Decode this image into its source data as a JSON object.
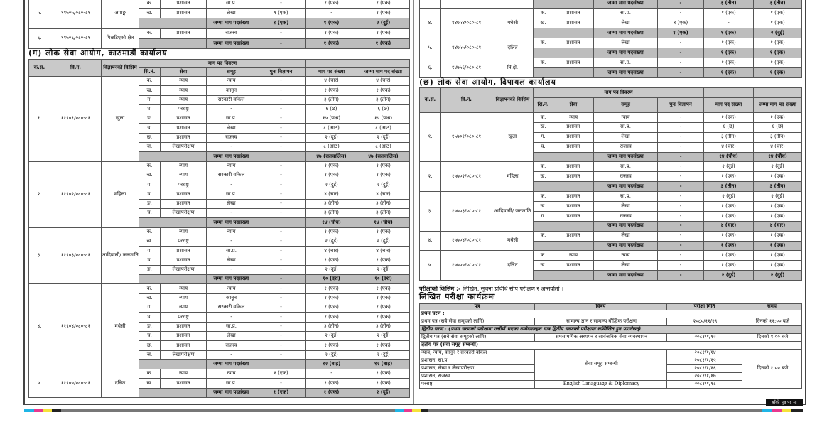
{
  "total_label": "जम्मा माग पदसंख्या",
  "headers": {
    "ks": "क.सं.",
    "vn": "वि.नं.",
    "type": "विज्ञापनको किसिम",
    "detail": "माग पद विवरण",
    "sn": "सि.नं.",
    "sewa": "सेवा",
    "samuh": "समूह",
    "puna": "पुनः विज्ञापन",
    "maag": "माग पद संख्या",
    "jamma": "जम्मा माग पद संख्या"
  },
  "left_top_groups": [
    {
      "ks": "५.",
      "vn": "११५०५/०८०-८१",
      "type": "अपाङ्ग",
      "rows": [
        [
          "क.",
          "प्रशासन",
          "सा.प्र.",
          "-",
          "१ (एक)",
          "१ (एक)"
        ],
        [
          "ख.",
          "प्रशासन",
          "लेखा",
          "१ (एक)",
          "-",
          "१ (एक)"
        ]
      ],
      "total": [
        "१ (एक)",
        "१ (एक)",
        "२ (दुई)"
      ]
    },
    {
      "ks": "६.",
      "vn": "११५०६/०८०-८१",
      "type": "पिछडिएको क्षेत्र",
      "rows": [
        [
          "क.",
          "प्रशासन",
          "राजस्व",
          "-",
          "१ (एक)",
          "१ (एक)"
        ]
      ],
      "total": [
        "-",
        "१ (एक)",
        "१ (एक)"
      ]
    }
  ],
  "section_g": {
    "title": "(ग) लोक सेवा आयोग, काठमाडौं कार्यालय",
    "groups": [
      {
        "ks": "१.",
        "vn": "११९०१/०८०-८१",
        "type": "खुला",
        "rows": [
          [
            "क.",
            "न्याय",
            "न्याय",
            "-",
            "४ (चार)",
            "४ (चार)"
          ],
          [
            "ख.",
            "न्याय",
            "कानून",
            "-",
            "१ (एक)",
            "१ (एक)"
          ],
          [
            "ग.",
            "न्याय",
            "सरकारी वकिल",
            "-",
            "३ (तीन)",
            "३ (तीन)"
          ],
          [
            "घ.",
            "परराष्ट्र",
            "-",
            "-",
            "६ (छ)",
            "६ (छ)"
          ],
          [
            "ङ.",
            "प्रशासन",
            "सा.प्र.",
            "-",
            "१५ (पन्ध्र)",
            "१५ (पन्ध्र)"
          ],
          [
            "च.",
            "प्रशासन",
            "लेखा",
            "-",
            "८ (आठ)",
            "८ (आठ)"
          ],
          [
            "छ.",
            "प्रशासन",
            "राजस्व",
            "-",
            "२ (दुई)",
            "२ (दुई)"
          ],
          [
            "ज.",
            "लेखापरीक्षण",
            "-",
            "-",
            "८ (आठ)",
            "८ (आठ)"
          ]
        ],
        "total": [
          "",
          "४७ (सतचालिस)",
          "४७ (सतचालिस)"
        ]
      },
      {
        "ks": "२.",
        "vn": "११९०२/०८०-८१",
        "type": "महिला",
        "rows": [
          [
            "क.",
            "न्याय",
            "न्याय",
            "-",
            "१ (एक)",
            "१ (एक)"
          ],
          [
            "ख.",
            "न्याय",
            "सरकारी वकिल",
            "-",
            "१ (एक)",
            "१ (एक)"
          ],
          [
            "ग.",
            "परराष्ट्र",
            "-",
            "-",
            "२ (दुई)",
            "२ (दुई)"
          ],
          [
            "घ.",
            "प्रशासन",
            "सा.प्र.",
            "-",
            "४ (चार)",
            "४ (चार)"
          ],
          [
            "ङ.",
            "प्रशासन",
            "लेखा",
            "-",
            "३ (तीन)",
            "३ (तीन)"
          ],
          [
            "च.",
            "लेखापरीक्षण",
            "-",
            "-",
            "३ (तीन)",
            "३ (तीन)"
          ]
        ],
        "total": [
          "",
          "१४ (चौध)",
          "१४ (चौध)"
        ]
      },
      {
        "ks": "३.",
        "vn": "११९०३/०८०-८१",
        "type": "आदिवासी/ जनजाति",
        "rows": [
          [
            "क.",
            "न्याय",
            "न्याय",
            "-",
            "१ (एक)",
            "१ (एक)"
          ],
          [
            "ख.",
            "परराष्ट्र",
            "-",
            "-",
            "२ (दुई)",
            "२ (दुई)"
          ],
          [
            "ग.",
            "प्रशासन",
            "सा.प्र.",
            "-",
            "४ (चार)",
            "४ (चार)"
          ],
          [
            "घ.",
            "प्रशासन",
            "लेखा",
            "-",
            "१ (एक)",
            "१ (एक)"
          ],
          [
            "ङ.",
            "लेखापरीक्षण",
            "-",
            "-",
            "२ (दुई)",
            "२ (दुई)"
          ]
        ],
        "total": [
          "-",
          "१० (दश)",
          "१० (दश)"
        ]
      },
      {
        "ks": "४.",
        "vn": "११९०४/०८०-८१",
        "type": "मधेसी",
        "rows": [
          [
            "क.",
            "न्याय",
            "न्याय",
            "-",
            "१ (एक)",
            "१ (एक)"
          ],
          [
            "ख.",
            "न्याय",
            "कानून",
            "-",
            "१ (एक)",
            "१ (एक)"
          ],
          [
            "ग.",
            "न्याय",
            "सरकारी वकिल",
            "-",
            "१ (एक)",
            "१ (एक)"
          ],
          [
            "घ.",
            "परराष्ट्र",
            "-",
            "-",
            "१ (एक)",
            "१ (एक)"
          ],
          [
            "ङ.",
            "प्रशासन",
            "सा.प्र.",
            "-",
            "३ (तीन)",
            "३ (तीन)"
          ],
          [
            "च.",
            "प्रशासन",
            "लेखा",
            "-",
            "२ (दुई)",
            "२ (दुई)"
          ],
          [
            "छ.",
            "प्रशासन",
            "राजस्व",
            "-",
            "१ (एक)",
            "१ (एक)"
          ],
          [
            "ज.",
            "लेखापरीक्षण",
            "-",
            "-",
            "२ (दुई)",
            "२ (दुई)"
          ]
        ],
        "total": [
          "",
          "१२ (बाह्र)",
          "१२ (बाह्र)"
        ]
      },
      {
        "ks": "५.",
        "vn": "११९०५/०८०-८१",
        "type": "दलित",
        "rows": [
          [
            "क.",
            "न्याय",
            "न्याय",
            "१ (एक)",
            "-",
            "१ (एक)"
          ],
          [
            "ख.",
            "प्रशासन",
            "सा.प्र.",
            "-",
            "१ (एक)",
            "१ (एक)"
          ]
        ],
        "total": [
          "१ (एक)",
          "१ (एक)",
          "२ (दुई)"
        ]
      }
    ]
  },
  "right_top_total": [
    "-",
    "३ (तीन)",
    "३ (तीन)"
  ],
  "right_top_groups": [
    {
      "ks": "४.",
      "vn": "१४७५४/०८०-८१",
      "type": "मधेसी",
      "rows": [
        [
          "क.",
          "प्रशासन",
          "सा.प्र.",
          "-",
          "१ (एक)",
          "१ (एक)"
        ],
        [
          "ख.",
          "प्रशासन",
          "लेखा",
          "१ (एक)",
          "-",
          "१ (एक)"
        ]
      ],
      "total": [
        "१ (एक)",
        "१ (एक)",
        "२ (दुई)"
      ]
    },
    {
      "ks": "५.",
      "vn": "१४७५५/०८०-८१",
      "type": "दलित",
      "rows": [
        [
          "क.",
          "प्रशासन",
          "लेखा",
          "-",
          "१ (एक)",
          "१ (एक)"
        ]
      ],
      "total": [
        "-",
        "१ (एक)",
        "१ (एक)"
      ]
    },
    {
      "ks": "६.",
      "vn": "१४७५६/०८०-८१",
      "type": "पि.क्षे.",
      "rows": [
        [
          "क.",
          "प्रशासन",
          "सा.प्र.",
          "-",
          "१ (एक)",
          "१ (एक)"
        ]
      ],
      "total": [
        "-",
        "१ (एक)",
        "१ (एक)"
      ]
    }
  ],
  "section_chh": {
    "title": "(छ) लोक सेवा आयोग, दिपायल कार्यालय",
    "groups": [
      {
        "ks": "१.",
        "vn": "१५७०१/०८०-८१",
        "type": "खुला",
        "rows": [
          [
            "क.",
            "न्याय",
            "न्याय",
            "-",
            "१ (एक)",
            "१ (एक)"
          ],
          [
            "ख.",
            "प्रशासन",
            "सा.प्र.",
            "-",
            "६ (छ)",
            "६ (छ)"
          ],
          [
            "ग.",
            "प्रशासन",
            "लेखा",
            "-",
            "३ (तीन)",
            "३ (तीन)"
          ],
          [
            "घ.",
            "प्रशासन",
            "राजस्व",
            "-",
            "४ (चार)",
            "४ (चार)"
          ]
        ],
        "total": [
          "-",
          "१४ (चौध)",
          "१४ (चौध)"
        ]
      },
      {
        "ks": "२.",
        "vn": "१५७०२/०८०-८१",
        "type": "महिला",
        "rows": [
          [
            "क.",
            "प्रशासन",
            "सा.प्र.",
            "-",
            "२ (दुई)",
            "२ (दुई)"
          ],
          [
            "ख.",
            "प्रशासन",
            "राजस्व",
            "-",
            "१ (एक)",
            "१ (एक)"
          ]
        ],
        "total": [
          "-",
          "३ (तीन)",
          "३ (तीन)"
        ]
      },
      {
        "ks": "३.",
        "vn": "१५७०३/०८०-८१",
        "type": "आदिवासी/ जनजाति",
        "rows": [
          [
            "क.",
            "प्रशासन",
            "सा.प्र.",
            "-",
            "२ (दुई)",
            "२ (दुई)"
          ],
          [
            "ख.",
            "प्रशासन",
            "लेखा",
            "-",
            "१ (एक)",
            "१ (एक)"
          ],
          [
            "ग.",
            "प्रशासन",
            "राजस्व",
            "-",
            "१ (एक)",
            "१ (एक)"
          ]
        ],
        "total": [
          "-",
          "४ (चार)",
          "४ (चार)"
        ]
      },
      {
        "ks": "४.",
        "vn": "१५७०४/०८०-८१",
        "type": "मधेसी",
        "rows": [
          [
            "क.",
            "प्रशासन",
            "लेखा",
            "-",
            "१ (एक)",
            "१ (एक)"
          ]
        ],
        "total": [
          "-",
          "१ (एक)",
          "१ (एक)"
        ]
      },
      {
        "ks": "५.",
        "vn": "१५७०५/०८०-८१",
        "type": "दलित",
        "rows": [
          [
            "क.",
            "न्याय",
            "न्याय",
            "-",
            "१ (एक)",
            "१ (एक)"
          ],
          [
            "ख.",
            "प्रशासन",
            "लेखा",
            "-",
            "१ (एक)",
            "१ (एक)"
          ]
        ],
        "total": [
          "-",
          "२ (दुई)",
          "२ (दुई)"
        ]
      }
    ]
  },
  "exam": {
    "type_label": "परीक्षाको किसिम :-",
    "type_value": "लिखित, सूचना प्रविधि सीप परीक्षण र अन्तर्वार्ता ।",
    "schedule_title": "लिखित परीक्षा कार्यक्रमः",
    "headers": [
      "पत्र",
      "विषय",
      "परीक्षा मिति",
      "समय"
    ],
    "phase1": "प्रथम चरण :",
    "p1": [
      "प्रथम पत्र (सबै सेवा समूहको लागि)",
      "सामान्य ज्ञान र सामान्य बौद्धिक परीक्षण",
      "२०८०/११/२९",
      "दिनको ११:०० बजे"
    ],
    "phase2": "द्वितीय चरण : (प्रथम चरणको परीक्षामा उत्तीर्ण भएका उम्मेदवारहरु मात्र द्वितीय चरणको परीक्षामा सम्मिलित हुन पाउनेछन्)",
    "p2": [
      "द्वितीय पत्र (सबै सेवा समूहको लागि)",
      "समसामयिक अध्ययन र सार्वजनिक सेवा व्यवस्थापन",
      "२०८१/१/१२",
      "दिनको १:०० बजे"
    ],
    "phase3": "तृतीय पत्र (सेवा समूह सम्बन्धी)",
    "p3_subject": "सेवा समूह सम्बन्धी",
    "p3_time": "दिनको १:०० बजे",
    "p3": [
      [
        "न्याय, न्याय, कानून र सरकारी वकिल",
        "२०८१/१/१४"
      ],
      [
        "प्रशासन, सा.प्र.",
        "२०८१/१/१५"
      ],
      [
        "प्रशासन, लेखा र लेखापरीक्षण",
        "२०८१/१/१६"
      ],
      [
        "प्रशासन, राजस्व",
        "२०८१/१/१७"
      ],
      [
        "परराष्ट्र",
        "२०८१/१/१८"
      ]
    ],
    "p3_last_subject": "English Lanaguage & Diplomacy"
  },
  "footer_badge": "बाँकी पृष्ठ ५६ मा",
  "colors": {
    "header_bg": "#c9c9c9",
    "total_bg": "#bdbdbd",
    "cyan": "#1fb5e6",
    "magenta": "#e8388f",
    "yellow": "#f6e23a",
    "black": "#222222"
  }
}
